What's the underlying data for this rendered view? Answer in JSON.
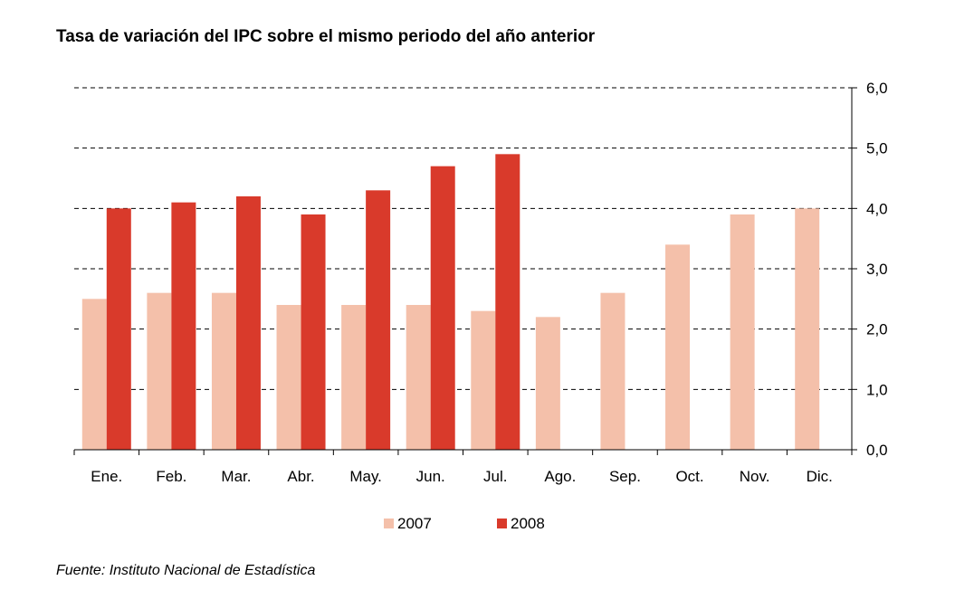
{
  "title": "Tasa de variación del IPC sobre el mismo periodo del año anterior",
  "source": "Fuente: Instituto Nacional de Estadística",
  "colors": {
    "series_2007": "#f4c0aa",
    "series_2008": "#d93a2b"
  },
  "chart_data": {
    "type": "bar",
    "categories": [
      "Ene.",
      "Feb.",
      "Mar.",
      "Abr.",
      "May.",
      "Jun.",
      "Jul.",
      "Ago.",
      "Sep.",
      "Oct.",
      "Nov.",
      "Dic."
    ],
    "series": [
      {
        "name": "2007",
        "values": [
          2.5,
          2.6,
          2.6,
          2.4,
          2.4,
          2.4,
          2.3,
          2.2,
          2.6,
          3.4,
          3.9,
          4.0
        ]
      },
      {
        "name": "2008",
        "values": [
          4.0,
          4.1,
          4.2,
          3.9,
          4.3,
          4.7,
          4.9,
          null,
          null,
          null,
          null,
          null
        ]
      }
    ],
    "ylim": [
      0,
      6
    ],
    "yticks": [
      "0,0",
      "1,0",
      "2,0",
      "3,0",
      "4,0",
      "5,0",
      "6,0"
    ],
    "y_axis_position": "right",
    "grid": true,
    "legend_position": "bottom"
  }
}
